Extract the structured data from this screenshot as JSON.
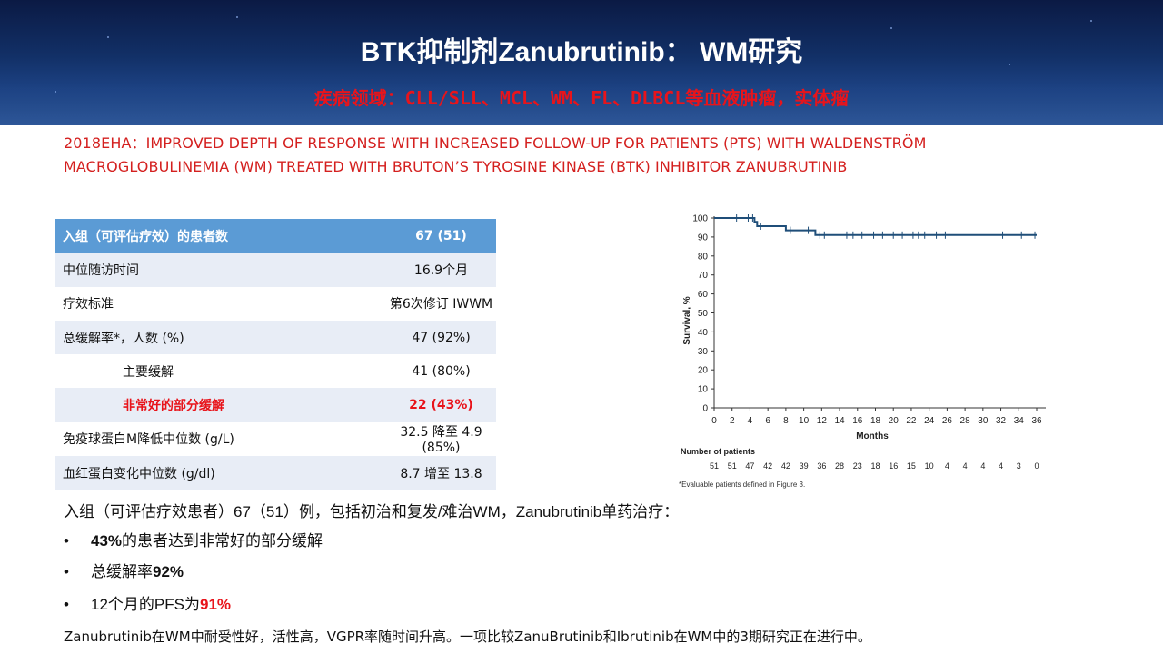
{
  "header": {
    "title": "BTK抑制剂Zanubrutinib： WM研究",
    "subtitle": "疾病领域：CLL/SLL、MCL、WM、FL、DLBCL等血液肿瘤，实体瘤"
  },
  "study_title": {
    "line1": "2018EHA：IMPROVED DEPTH OF RESPONSE WITH INCREASED FOLLOW-UP FOR PATIENTS (PTS) WITH WALDENSTRÖM",
    "line2": "MACROGLOBULINEMIA (WM) TREATED WITH BRUTON’S TYROSINE KINASE (BTK) INHIBITOR  ZANUBRUTINIB"
  },
  "table": {
    "rows": [
      {
        "label": "入组（可评估疗效）的患者数",
        "value": "67 (51)"
      },
      {
        "label": "中位随访时间",
        "value": "16.9个月"
      },
      {
        "label": "疗效标准",
        "value": "第6次修订 IWWM"
      },
      {
        "label": "总缓解率*，人数 (%)",
        "value": "47 (92%)"
      },
      {
        "label": "主要缓解",
        "value": "41 (80%)"
      },
      {
        "label": "非常好的部分缓解",
        "value": "22 (43%)"
      },
      {
        "label": "免疫球蛋白M降低中位数 (g/L)",
        "value": "32.5 降至 4.9 (85%)"
      },
      {
        "label": "血红蛋白变化中位数 (g/dl)",
        "value": "8.7 增至 13.8"
      }
    ]
  },
  "chart_data": {
    "type": "line",
    "title": "",
    "xlabel": "Months",
    "ylabel": "Survival, %",
    "xlim": [
      0,
      36
    ],
    "ylim": [
      0,
      100
    ],
    "x_ticks": [
      0,
      2,
      4,
      6,
      8,
      10,
      12,
      14,
      16,
      18,
      20,
      22,
      24,
      26,
      28,
      30,
      32,
      34,
      36
    ],
    "y_ticks": [
      0,
      10,
      20,
      30,
      40,
      50,
      60,
      70,
      80,
      90,
      100
    ],
    "series": [
      {
        "name": "",
        "color": "#1f4e79",
        "steps": [
          [
            0,
            100
          ],
          [
            4.5,
            100
          ],
          [
            4.5,
            98
          ],
          [
            4.8,
            98
          ],
          [
            4.8,
            95.7
          ],
          [
            8,
            95.7
          ],
          [
            8,
            93.5
          ],
          [
            11.3,
            93.5
          ],
          [
            11.3,
            91
          ],
          [
            36,
            91
          ]
        ],
        "censor_x": [
          2.5,
          3.8,
          4.3,
          5.2,
          8.5,
          10.5,
          11.8,
          12.3,
          14.8,
          15.5,
          16.5,
          17.8,
          18.8,
          20,
          21,
          22.2,
          22.8,
          23.5,
          24.8,
          25.8,
          32.2,
          34.3,
          35.8
        ]
      }
    ],
    "risk_table": {
      "label": "Number of patients",
      "counts": [
        "51",
        "51",
        "47",
        "42",
        "42",
        "39",
        "36",
        "28",
        "23",
        "18",
        "16",
        "15",
        "10",
        "4",
        "4",
        "4",
        "4",
        "3",
        "0"
      ]
    },
    "footnote": "*Evaluable patients defined in Figure 3."
  },
  "notes": {
    "intro": "入组（可评估疗效患者）67（51）例，包括初治和复发/难治WM，Zanubrutinib单药治疗：",
    "bullet_glyph": "•",
    "bullet1_bold": "43%",
    "bullet1_rest": "的患者达到非常好的部分缓解",
    "bullet2_text": "总缓解率",
    "bullet2_bold": "92%",
    "bullet3_text": "12个月的PFS为",
    "bullet3_red": "91%",
    "footer": "Zanubrutinib在WM中耐受性好，活性高，VGPR率随时间升高。一项比较ZanuBrutinib和Ibrutinib在WM中的3期研究正在进行中。"
  }
}
